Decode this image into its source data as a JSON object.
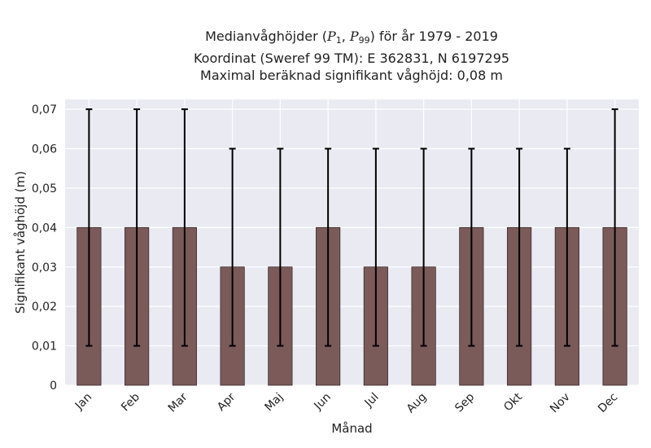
{
  "title": {
    "line1_prefix": "Medianvåghöjder (",
    "p1": "P",
    "p1_sub": "1",
    "p99": "P",
    "p99_sub": "99",
    "line1_suffix": ") för år 1979 - 2019",
    "line2": "Koordinat (Sweref 99 TM): E 362831, N 6197295",
    "line3": "Maximal beräknad signifikant våghöjd: 0,08 m"
  },
  "chart_data": {
    "type": "bar",
    "xlabel": "Månad",
    "ylabel": "Signifikant våghöjd (m)",
    "ylim": [
      0,
      0.0725
    ],
    "yticks": [
      0,
      0.01,
      0.02,
      0.03,
      0.04,
      0.05,
      0.06,
      0.07
    ],
    "ytick_labels": [
      "0",
      "0,01",
      "0,02",
      "0,03",
      "0,04",
      "0,05",
      "0,06",
      "0,07"
    ],
    "categories": [
      "Jan",
      "Feb",
      "Mar",
      "Apr",
      "Maj",
      "Jun",
      "Jul",
      "Aug",
      "Sep",
      "Okt",
      "Nov",
      "Dec"
    ],
    "values": [
      0.04,
      0.04,
      0.04,
      0.03,
      0.03,
      0.04,
      0.03,
      0.03,
      0.04,
      0.04,
      0.04,
      0.04
    ],
    "p1": [
      0.01,
      0.01,
      0.01,
      0.01,
      0.01,
      0.01,
      0.01,
      0.01,
      0.01,
      0.01,
      0.01,
      0.01
    ],
    "p99": [
      0.07,
      0.07,
      0.07,
      0.06,
      0.06,
      0.06,
      0.06,
      0.06,
      0.06,
      0.06,
      0.06,
      0.07
    ],
    "grid": true,
    "colors": {
      "bar": "#7b5a5a",
      "bar_edge": "#3a2a2a",
      "errorbar": "#000000",
      "plot_bg": "#eaeaf2",
      "grid": "#ffffff"
    }
  }
}
